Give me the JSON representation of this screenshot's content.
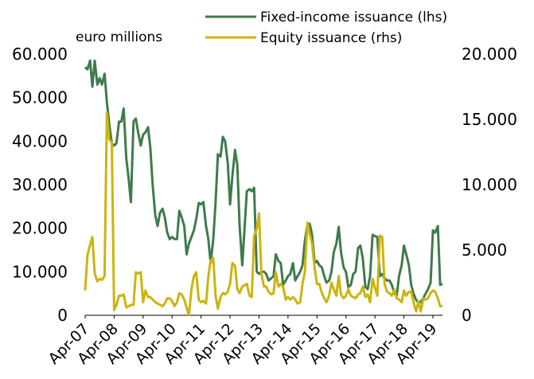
{
  "chart_data": {
    "type": "line",
    "unit_label": "euro millions",
    "x_tick_labels": [
      "Apr-07",
      "Apr-08",
      "Apr-09",
      "Apr-10",
      "Apr-11",
      "Apr-12",
      "Apr-13",
      "Apr-14",
      "Apr-15",
      "Apr-16",
      "Apr-17",
      "Apr-18",
      "Apr-19"
    ],
    "y_left": {
      "ylim": [
        0,
        60000
      ],
      "ticks": [
        "0",
        "10.000",
        "20.000",
        "30.000",
        "40.000",
        "50.000",
        "60.000"
      ]
    },
    "y_right": {
      "ylim": [
        0,
        20000
      ],
      "ticks": [
        "0",
        "5.000",
        "10.000",
        "15.000",
        "20.000"
      ]
    },
    "grid": false,
    "legend_position": "top",
    "series": [
      {
        "name": "Fixed-income issuance (lhs)",
        "axis": "left",
        "color": "#3e7b4c",
        "values": [
          [
            2007.25,
            57000
          ],
          [
            2007.33,
            56500
          ],
          [
            2007.42,
            58500
          ],
          [
            2007.5,
            52500
          ],
          [
            2007.58,
            58500
          ],
          [
            2007.67,
            53000
          ],
          [
            2007.75,
            54500
          ],
          [
            2007.83,
            53000
          ],
          [
            2007.92,
            55500
          ],
          [
            2008.0,
            49000
          ],
          [
            2008.08,
            44000
          ],
          [
            2008.17,
            39500
          ],
          [
            2008.25,
            39000
          ],
          [
            2008.33,
            39500
          ],
          [
            2008.42,
            44500
          ],
          [
            2008.5,
            44500
          ],
          [
            2008.58,
            47500
          ],
          [
            2008.67,
            36000
          ],
          [
            2008.75,
            31500
          ],
          [
            2008.83,
            26000
          ],
          [
            2008.92,
            44500
          ],
          [
            2009.0,
            45200
          ],
          [
            2009.08,
            42000
          ],
          [
            2009.17,
            39000
          ],
          [
            2009.25,
            41500
          ],
          [
            2009.33,
            42000
          ],
          [
            2009.42,
            43200
          ],
          [
            2009.5,
            38500
          ],
          [
            2009.58,
            30000
          ],
          [
            2009.67,
            23000
          ],
          [
            2009.75,
            20500
          ],
          [
            2009.83,
            23500
          ],
          [
            2009.92,
            24500
          ],
          [
            2010.0,
            22500
          ],
          [
            2010.08,
            19000
          ],
          [
            2010.17,
            17500
          ],
          [
            2010.25,
            18000
          ],
          [
            2010.33,
            17500
          ],
          [
            2010.42,
            17500
          ],
          [
            2010.5,
            24000
          ],
          [
            2010.58,
            22500
          ],
          [
            2010.67,
            20500
          ],
          [
            2010.75,
            14000
          ],
          [
            2010.83,
            16500
          ],
          [
            2010.92,
            18000
          ],
          [
            2011.0,
            19500
          ],
          [
            2011.08,
            22000
          ],
          [
            2011.17,
            25800
          ],
          [
            2011.25,
            25500
          ],
          [
            2011.33,
            26000
          ],
          [
            2011.42,
            20500
          ],
          [
            2011.5,
            17500
          ],
          [
            2011.58,
            12000
          ],
          [
            2011.67,
            17500
          ],
          [
            2011.75,
            26000
          ],
          [
            2011.83,
            37000
          ],
          [
            2011.92,
            36500
          ],
          [
            2012.0,
            41000
          ],
          [
            2012.08,
            40000
          ],
          [
            2012.17,
            35000
          ],
          [
            2012.25,
            25500
          ],
          [
            2012.33,
            32000
          ],
          [
            2012.42,
            38000
          ],
          [
            2012.5,
            34500
          ],
          [
            2012.58,
            20500
          ],
          [
            2012.67,
            11500
          ],
          [
            2012.75,
            20000
          ],
          [
            2012.83,
            28500
          ],
          [
            2012.92,
            29000
          ],
          [
            2013.0,
            28500
          ],
          [
            2013.08,
            29300
          ],
          [
            2013.17,
            10000
          ],
          [
            2013.25,
            9500
          ],
          [
            2013.33,
            10000
          ],
          [
            2013.42,
            10000
          ],
          [
            2013.5,
            9500
          ],
          [
            2013.58,
            8000
          ],
          [
            2013.67,
            8500
          ],
          [
            2013.75,
            9000
          ],
          [
            2013.83,
            14000
          ],
          [
            2013.92,
            12500
          ],
          [
            2014.0,
            12000
          ],
          [
            2014.08,
            7000
          ],
          [
            2014.17,
            8000
          ],
          [
            2014.25,
            9000
          ],
          [
            2014.33,
            9500
          ],
          [
            2014.42,
            12000
          ],
          [
            2014.5,
            8000
          ],
          [
            2014.58,
            9000
          ],
          [
            2014.67,
            10000
          ],
          [
            2014.75,
            11500
          ],
          [
            2014.83,
            17000
          ],
          [
            2014.92,
            20800
          ],
          [
            2015.0,
            21000
          ],
          [
            2015.08,
            18500
          ],
          [
            2015.17,
            12000
          ],
          [
            2015.25,
            12500
          ],
          [
            2015.33,
            11500
          ],
          [
            2015.42,
            11000
          ],
          [
            2015.5,
            9000
          ],
          [
            2015.58,
            7500
          ],
          [
            2015.67,
            8000
          ],
          [
            2015.75,
            10000
          ],
          [
            2015.83,
            14500
          ],
          [
            2015.92,
            16500
          ],
          [
            2016.0,
            20300
          ],
          [
            2016.08,
            14500
          ],
          [
            2016.17,
            11000
          ],
          [
            2016.25,
            10000
          ],
          [
            2016.33,
            6500
          ],
          [
            2016.42,
            7000
          ],
          [
            2016.5,
            9500
          ],
          [
            2016.58,
            10000
          ],
          [
            2016.67,
            15500
          ],
          [
            2016.75,
            16000
          ],
          [
            2016.83,
            13000
          ],
          [
            2016.92,
            6500
          ],
          [
            2017.0,
            6000
          ],
          [
            2017.08,
            9000
          ],
          [
            2017.17,
            18500
          ],
          [
            2017.25,
            18200
          ],
          [
            2017.33,
            18000
          ],
          [
            2017.42,
            9000
          ],
          [
            2017.5,
            9500
          ],
          [
            2017.58,
            8500
          ],
          [
            2017.67,
            8000
          ],
          [
            2017.75,
            8000
          ],
          [
            2017.83,
            7000
          ],
          [
            2017.92,
            5000
          ],
          [
            2018.0,
            4500
          ],
          [
            2018.08,
            9000
          ],
          [
            2018.17,
            11500
          ],
          [
            2018.25,
            16000
          ],
          [
            2018.33,
            14000
          ],
          [
            2018.42,
            11500
          ],
          [
            2018.5,
            7000
          ],
          [
            2018.58,
            5000
          ],
          [
            2018.67,
            3500
          ],
          [
            2018.75,
            3000
          ],
          [
            2018.83,
            3000
          ],
          [
            2018.92,
            4000
          ],
          [
            2019.0,
            5000
          ],
          [
            2019.08,
            6000
          ],
          [
            2019.17,
            7500
          ],
          [
            2019.25,
            19500
          ],
          [
            2019.33,
            19000
          ],
          [
            2019.42,
            20500
          ],
          [
            2019.5,
            7000
          ],
          [
            2019.58,
            7200
          ]
        ]
      },
      {
        "name": "Equity issuance (rhs)",
        "axis": "right",
        "color": "#ccb40f",
        "values": [
          [
            2007.25,
            1900
          ],
          [
            2007.33,
            4600
          ],
          [
            2007.42,
            5400
          ],
          [
            2007.5,
            6000
          ],
          [
            2007.58,
            3200
          ],
          [
            2007.67,
            2600
          ],
          [
            2007.75,
            2800
          ],
          [
            2007.83,
            2700
          ],
          [
            2007.92,
            3000
          ],
          [
            2008.0,
            15500
          ],
          [
            2008.08,
            13500
          ],
          [
            2008.17,
            13200
          ],
          [
            2008.25,
            400
          ],
          [
            2008.33,
            800
          ],
          [
            2008.42,
            1500
          ],
          [
            2008.5,
            1500
          ],
          [
            2008.58,
            1600
          ],
          [
            2008.67,
            600
          ],
          [
            2008.75,
            700
          ],
          [
            2008.83,
            800
          ],
          [
            2008.92,
            800
          ],
          [
            2009.0,
            3300
          ],
          [
            2009.08,
            3200
          ],
          [
            2009.17,
            3300
          ],
          [
            2009.25,
            1000
          ],
          [
            2009.33,
            1900
          ],
          [
            2009.42,
            1400
          ],
          [
            2009.5,
            1400
          ],
          [
            2009.58,
            1200
          ],
          [
            2009.67,
            1000
          ],
          [
            2009.75,
            900
          ],
          [
            2009.83,
            800
          ],
          [
            2009.92,
            700
          ],
          [
            2010.0,
            900
          ],
          [
            2010.08,
            1300
          ],
          [
            2010.17,
            1300
          ],
          [
            2010.25,
            1100
          ],
          [
            2010.33,
            700
          ],
          [
            2010.42,
            1000
          ],
          [
            2010.5,
            1700
          ],
          [
            2010.58,
            1600
          ],
          [
            2010.67,
            1200
          ],
          [
            2010.75,
            600
          ],
          [
            2010.83,
            0
          ],
          [
            2010.92,
            2000
          ],
          [
            2011.0,
            3000
          ],
          [
            2011.08,
            3300
          ],
          [
            2011.17,
            1200
          ],
          [
            2011.25,
            1000
          ],
          [
            2011.33,
            1100
          ],
          [
            2011.42,
            900
          ],
          [
            2011.5,
            3000
          ],
          [
            2011.58,
            4200
          ],
          [
            2011.67,
            4400
          ],
          [
            2011.75,
            1500
          ],
          [
            2011.83,
            500
          ],
          [
            2011.92,
            1400
          ],
          [
            2012.0,
            1700
          ],
          [
            2012.08,
            1600
          ],
          [
            2012.17,
            1800
          ],
          [
            2012.25,
            2400
          ],
          [
            2012.33,
            4000
          ],
          [
            2012.42,
            3800
          ],
          [
            2012.5,
            2000
          ],
          [
            2012.58,
            1700
          ],
          [
            2012.67,
            2200
          ],
          [
            2012.75,
            2300
          ],
          [
            2012.83,
            2400
          ],
          [
            2012.92,
            1500
          ],
          [
            2013.0,
            1400
          ],
          [
            2013.08,
            6100
          ],
          [
            2013.17,
            6600
          ],
          [
            2013.25,
            7800
          ],
          [
            2013.33,
            3200
          ],
          [
            2013.42,
            2200
          ],
          [
            2013.5,
            2200
          ],
          [
            2013.58,
            1800
          ],
          [
            2013.67,
            1600
          ],
          [
            2013.75,
            1700
          ],
          [
            2013.83,
            3300
          ],
          [
            2013.92,
            2200
          ],
          [
            2014.0,
            2400
          ],
          [
            2014.08,
            2200
          ],
          [
            2014.17,
            1200
          ],
          [
            2014.25,
            1400
          ],
          [
            2014.33,
            1200
          ],
          [
            2014.42,
            1400
          ],
          [
            2014.5,
            1200
          ],
          [
            2014.58,
            900
          ],
          [
            2014.67,
            1000
          ],
          [
            2014.75,
            2400
          ],
          [
            2014.83,
            3300
          ],
          [
            2014.92,
            7100
          ],
          [
            2015.0,
            6200
          ],
          [
            2015.08,
            5500
          ],
          [
            2015.17,
            3600
          ],
          [
            2015.25,
            2400
          ],
          [
            2015.33,
            2400
          ],
          [
            2015.42,
            1700
          ],
          [
            2015.5,
            1300
          ],
          [
            2015.58,
            1000
          ],
          [
            2015.67,
            1500
          ],
          [
            2015.75,
            2500
          ],
          [
            2015.83,
            2000
          ],
          [
            2015.92,
            1500
          ],
          [
            2016.0,
            3000
          ],
          [
            2016.08,
            1600
          ],
          [
            2016.17,
            1300
          ],
          [
            2016.25,
            1500
          ],
          [
            2016.33,
            2000
          ],
          [
            2016.42,
            1500
          ],
          [
            2016.5,
            1400
          ],
          [
            2016.58,
            1300
          ],
          [
            2016.67,
            1600
          ],
          [
            2016.75,
            1700
          ],
          [
            2016.83,
            2200
          ],
          [
            2016.92,
            1400
          ],
          [
            2017.0,
            1600
          ],
          [
            2017.08,
            1000
          ],
          [
            2017.17,
            2800
          ],
          [
            2017.25,
            2100
          ],
          [
            2017.33,
            1500
          ],
          [
            2017.42,
            6100
          ],
          [
            2017.5,
            6000
          ],
          [
            2017.58,
            2400
          ],
          [
            2017.67,
            1800
          ],
          [
            2017.75,
            1700
          ],
          [
            2017.83,
            1500
          ],
          [
            2017.92,
            2000
          ],
          [
            2018.0,
            1300
          ],
          [
            2018.08,
            1200
          ],
          [
            2018.17,
            1000
          ],
          [
            2018.25,
            1900
          ],
          [
            2018.33,
            1500
          ],
          [
            2018.42,
            1800
          ],
          [
            2018.5,
            1800
          ],
          [
            2018.58,
            1000
          ],
          [
            2018.67,
            300
          ],
          [
            2018.75,
            1100
          ],
          [
            2018.83,
            300
          ],
          [
            2018.92,
            1300
          ],
          [
            2019.0,
            1200
          ],
          [
            2019.08,
            1300
          ],
          [
            2019.17,
            1700
          ],
          [
            2019.25,
            1900
          ],
          [
            2019.33,
            1800
          ],
          [
            2019.42,
            1300
          ],
          [
            2019.5,
            700
          ],
          [
            2019.58,
            700
          ]
        ]
      }
    ]
  }
}
